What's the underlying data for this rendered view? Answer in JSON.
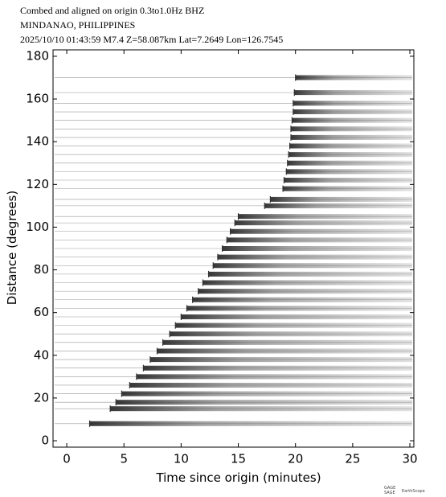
{
  "chart_data": {
    "type": "record-section",
    "title": "Combed and aligned on origin  0.3to1.0Hz  BHZ",
    "subtitle": "MINDANAO, PHILIPPINES",
    "event": "2025/10/10  01:43:59  M7.4  Z=58.087km Lat=7.2649 Lon=126.7545",
    "xlabel": "Time since origin (minutes)",
    "ylabel": "Distance (degrees)",
    "xlim": [
      -1.2,
      30.35
    ],
    "ylim": [
      -3,
      183
    ],
    "xticks": [
      0,
      5,
      10,
      15,
      20,
      25,
      30
    ],
    "yticks": [
      0,
      20,
      40,
      60,
      80,
      100,
      120,
      140,
      160,
      180
    ],
    "grid": false,
    "color": "#333333",
    "distance": [
      8,
      15,
      18,
      22,
      26,
      30,
      34,
      38,
      42,
      46,
      50,
      54,
      58,
      62,
      66,
      70,
      74,
      78,
      82,
      86,
      90,
      94,
      98,
      102,
      105,
      110,
      113,
      118,
      122,
      126,
      130,
      134,
      138,
      142,
      146,
      150,
      154,
      158,
      163,
      170
    ],
    "arrival": [
      2.0,
      3.8,
      4.3,
      4.8,
      5.5,
      6.1,
      6.7,
      7.3,
      7.9,
      8.4,
      9.0,
      9.5,
      10.0,
      10.5,
      11.0,
      11.5,
      11.9,
      12.4,
      12.8,
      13.2,
      13.6,
      14.0,
      14.3,
      14.7,
      15.0,
      17.3,
      17.8,
      18.9,
      19.0,
      19.2,
      19.3,
      19.4,
      19.5,
      19.6,
      19.6,
      19.7,
      19.8,
      19.8,
      19.9,
      20.0
    ],
    "logos": [
      "GAGE",
      "SAGE",
      "EarthScope"
    ]
  }
}
